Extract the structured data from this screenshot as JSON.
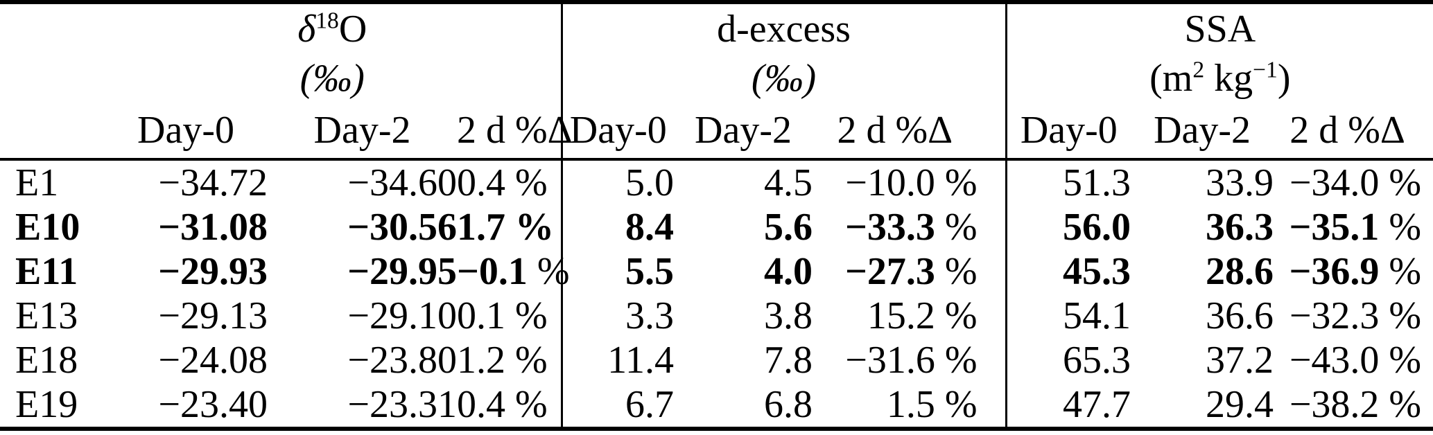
{
  "header": {
    "groups": [
      {
        "name": "delta-18-O",
        "title": [
          {
            "t": "δ",
            "i": true
          },
          {
            "sup": "18"
          },
          {
            "t": "O"
          }
        ],
        "unit": [
          {
            "t": "(‰)",
            "i": true
          }
        ],
        "cols": [
          "Day-0",
          "Day-2",
          "2 d %Δ"
        ]
      },
      {
        "name": "d-excess",
        "title": [
          {
            "t": "d-excess"
          }
        ],
        "unit": [
          {
            "t": "(‰)",
            "i": true
          }
        ],
        "cols": [
          "Day-0",
          "Day-2",
          "2 d %Δ"
        ]
      },
      {
        "name": "ssa",
        "title": [
          {
            "t": "SSA"
          }
        ],
        "unit": [
          {
            "t": "(m"
          },
          {
            "sup": "2"
          },
          {
            "t": " kg"
          },
          {
            "sup": "−1"
          },
          {
            "t": ")"
          }
        ],
        "cols": [
          "Day-0",
          "Day-2",
          "2 d %Δ"
        ]
      }
    ]
  },
  "rows": [
    {
      "id": "E1",
      "bold": false,
      "normal_pct": [],
      "values": [
        "−34.72",
        "−34.60",
        "0.4 %",
        "5.0",
        "4.5",
        "−10.0 %",
        "51.3",
        "33.9",
        "−34.0 %"
      ]
    },
    {
      "id": "E10",
      "bold": true,
      "normal_pct": [
        5,
        8
      ],
      "values": [
        "−31.08",
        "−30.56",
        "1.7 %",
        "8.4",
        "5.6",
        "−33.3 %",
        "56.0",
        "36.3",
        "−35.1 %"
      ]
    },
    {
      "id": "E11",
      "bold": true,
      "normal_pct": [
        2,
        5,
        8
      ],
      "values": [
        "−29.93",
        "−29.95",
        "−0.1 %",
        "5.5",
        "4.0",
        "−27.3 %",
        "45.3",
        "28.6",
        "−36.9 %"
      ]
    },
    {
      "id": "E13",
      "bold": false,
      "normal_pct": [],
      "values": [
        "−29.13",
        "−29.10",
        "0.1 %",
        "3.3",
        "3.8",
        "15.2 %",
        "54.1",
        "36.6",
        "−32.3 %"
      ]
    },
    {
      "id": "E18",
      "bold": false,
      "normal_pct": [],
      "values": [
        "−24.08",
        "−23.80",
        "1.2 %",
        "11.4",
        "7.8",
        "−31.6 %",
        "65.3",
        "37.2",
        "−43.0 %"
      ]
    },
    {
      "id": "E19",
      "bold": false,
      "normal_pct": [],
      "values": [
        "−23.40",
        "−23.31",
        "0.4 %",
        "6.7",
        "6.8",
        "1.5 %",
        "47.7",
        "29.4",
        "−38.2 %"
      ]
    }
  ]
}
